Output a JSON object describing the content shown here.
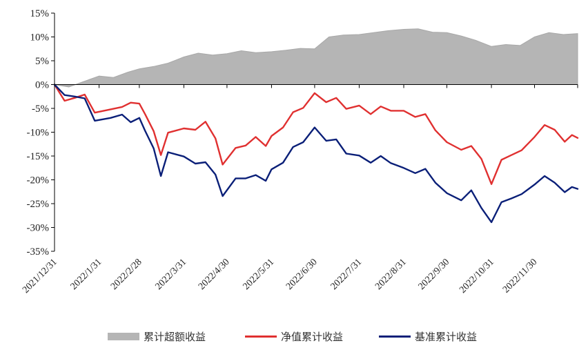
{
  "chart_data": {
    "type": "line",
    "title": "",
    "xlabel": "",
    "ylabel": "",
    "ylim": [
      -35,
      15
    ],
    "y_ticks": [
      "15%",
      "10%",
      "5%",
      "0%",
      "-5%",
      "-10%",
      "-15%",
      "-20%",
      "-25%",
      "-30%",
      "-35%"
    ],
    "y_tick_values": [
      15,
      10,
      5,
      0,
      -5,
      -10,
      -15,
      -20,
      -25,
      -30,
      -35
    ],
    "x_range": [
      "2021/12/31",
      "2022/12/30"
    ],
    "x_ticks": [
      "2021/12/31",
      "2022/1/31",
      "2022/2/28",
      "2022/3/31",
      "2022/4/30",
      "2022/5/31",
      "2022/6/30",
      "2022/7/31",
      "2022/8/31",
      "2022/9/30",
      "2022/10/31",
      "2022/11/30"
    ],
    "grid": false,
    "legend_position": "bottom",
    "series": [
      {
        "name": "累计超额收益",
        "type": "area",
        "color": "#b5b5b5",
        "points": [
          [
            "2021/12/31",
            0
          ],
          [
            "2022/1/10",
            -0.5
          ],
          [
            "2022/1/20",
            0.6
          ],
          [
            "2022/1/31",
            1.8
          ],
          [
            "2022/2/10",
            1.5
          ],
          [
            "2022/2/20",
            2.6
          ],
          [
            "2022/2/28",
            3.3
          ],
          [
            "2022/3/10",
            3.8
          ],
          [
            "2022/3/20",
            4.5
          ],
          [
            "2022/3/31",
            5.8
          ],
          [
            "2022/4/10",
            6.6
          ],
          [
            "2022/4/20",
            6.2
          ],
          [
            "2022/4/30",
            6.5
          ],
          [
            "2022/5/10",
            7.1
          ],
          [
            "2022/5/20",
            6.7
          ],
          [
            "2022/5/31",
            6.9
          ],
          [
            "2022/6/10",
            7.2
          ],
          [
            "2022/6/20",
            7.6
          ],
          [
            "2022/6/30",
            7.5
          ],
          [
            "2022/7/10",
            10.0
          ],
          [
            "2022/7/20",
            10.4
          ],
          [
            "2022/7/31",
            10.5
          ],
          [
            "2022/8/10",
            10.9
          ],
          [
            "2022/8/20",
            11.3
          ],
          [
            "2022/8/31",
            11.6
          ],
          [
            "2022/9/10",
            11.7
          ],
          [
            "2022/9/20",
            11.0
          ],
          [
            "2022/9/30",
            10.9
          ],
          [
            "2022/10/10",
            10.2
          ],
          [
            "2022/10/20",
            9.3
          ],
          [
            "2022/10/31",
            8.0
          ],
          [
            "2022/11/10",
            8.4
          ],
          [
            "2022/11/20",
            8.2
          ],
          [
            "2022/11/30",
            10.0
          ],
          [
            "2022/12/10",
            10.9
          ],
          [
            "2022/12/20",
            10.5
          ],
          [
            "2022/12/30",
            10.7
          ]
        ]
      },
      {
        "name": "净值累计收益",
        "type": "line",
        "color": "#e03030",
        "points": [
          [
            "2021/12/31",
            0
          ],
          [
            "2022/1/7",
            -3.4
          ],
          [
            "2022/1/14",
            -2.8
          ],
          [
            "2022/1/21",
            -2.1
          ],
          [
            "2022/1/28",
            -5.9
          ],
          [
            "2022/2/8",
            -5.2
          ],
          [
            "2022/2/16",
            -4.7
          ],
          [
            "2022/2/22",
            -3.8
          ],
          [
            "2022/2/28",
            -4.0
          ],
          [
            "2022/3/4",
            -6.2
          ],
          [
            "2022/3/10",
            -9.8
          ],
          [
            "2022/3/15",
            -14.8
          ],
          [
            "2022/3/20",
            -10.1
          ],
          [
            "2022/3/31",
            -9.2
          ],
          [
            "2022/4/8",
            -9.5
          ],
          [
            "2022/4/15",
            -7.8
          ],
          [
            "2022/4/22",
            -11.3
          ],
          [
            "2022/4/27",
            -16.8
          ],
          [
            "2022/5/6",
            -13.3
          ],
          [
            "2022/5/13",
            -12.8
          ],
          [
            "2022/5/20",
            -11.0
          ],
          [
            "2022/5/27",
            -12.9
          ],
          [
            "2022/5/31",
            -10.8
          ],
          [
            "2022/6/8",
            -9.0
          ],
          [
            "2022/6/15",
            -5.8
          ],
          [
            "2022/6/22",
            -4.9
          ],
          [
            "2022/6/30",
            -1.8
          ],
          [
            "2022/7/8",
            -3.7
          ],
          [
            "2022/7/15",
            -2.8
          ],
          [
            "2022/7/22",
            -5.1
          ],
          [
            "2022/7/31",
            -4.4
          ],
          [
            "2022/8/8",
            -6.2
          ],
          [
            "2022/8/15",
            -4.6
          ],
          [
            "2022/8/22",
            -5.5
          ],
          [
            "2022/8/31",
            -5.5
          ],
          [
            "2022/9/8",
            -6.8
          ],
          [
            "2022/9/15",
            -6.2
          ],
          [
            "2022/9/22",
            -9.6
          ],
          [
            "2022/9/30",
            -12.1
          ],
          [
            "2022/10/10",
            -13.7
          ],
          [
            "2022/10/17",
            -12.9
          ],
          [
            "2022/10/24",
            -15.6
          ],
          [
            "2022/10/31",
            -20.9
          ],
          [
            "2022/11/7",
            -15.8
          ],
          [
            "2022/11/14",
            -14.8
          ],
          [
            "2022/11/21",
            -13.8
          ],
          [
            "2022/11/30",
            -11.0
          ],
          [
            "2022/12/7",
            -8.5
          ],
          [
            "2022/12/14",
            -9.5
          ],
          [
            "2022/12/21",
            -12.0
          ],
          [
            "2022/12/26",
            -10.6
          ],
          [
            "2022/12/30",
            -11.2
          ]
        ]
      },
      {
        "name": "基准累计收益",
        "type": "line",
        "color": "#0a1f78",
        "points": [
          [
            "2021/12/31",
            0
          ],
          [
            "2022/1/7",
            -2.2
          ],
          [
            "2022/1/14",
            -2.5
          ],
          [
            "2022/1/21",
            -2.9
          ],
          [
            "2022/1/28",
            -7.6
          ],
          [
            "2022/2/8",
            -7.0
          ],
          [
            "2022/2/16",
            -6.3
          ],
          [
            "2022/2/22",
            -7.9
          ],
          [
            "2022/2/28",
            -7.0
          ],
          [
            "2022/3/4",
            -9.7
          ],
          [
            "2022/3/10",
            -13.4
          ],
          [
            "2022/3/15",
            -19.2
          ],
          [
            "2022/3/20",
            -14.2
          ],
          [
            "2022/3/31",
            -15.1
          ],
          [
            "2022/4/8",
            -16.6
          ],
          [
            "2022/4/15",
            -16.3
          ],
          [
            "2022/4/22",
            -18.9
          ],
          [
            "2022/4/27",
            -23.4
          ],
          [
            "2022/5/6",
            -19.7
          ],
          [
            "2022/5/13",
            -19.7
          ],
          [
            "2022/5/20",
            -19.0
          ],
          [
            "2022/5/27",
            -20.2
          ],
          [
            "2022/5/31",
            -17.8
          ],
          [
            "2022/6/8",
            -16.4
          ],
          [
            "2022/6/15",
            -13.1
          ],
          [
            "2022/6/22",
            -12.1
          ],
          [
            "2022/6/30",
            -9.0
          ],
          [
            "2022/7/8",
            -11.8
          ],
          [
            "2022/7/15",
            -11.5
          ],
          [
            "2022/7/22",
            -14.5
          ],
          [
            "2022/7/31",
            -14.9
          ],
          [
            "2022/8/8",
            -16.4
          ],
          [
            "2022/8/15",
            -15.0
          ],
          [
            "2022/8/22",
            -16.5
          ],
          [
            "2022/8/31",
            -17.5
          ],
          [
            "2022/9/8",
            -18.6
          ],
          [
            "2022/9/15",
            -17.7
          ],
          [
            "2022/9/22",
            -20.6
          ],
          [
            "2022/9/30",
            -22.8
          ],
          [
            "2022/10/10",
            -24.3
          ],
          [
            "2022/10/17",
            -22.2
          ],
          [
            "2022/10/24",
            -25.9
          ],
          [
            "2022/10/31",
            -28.9
          ],
          [
            "2022/11/7",
            -24.7
          ],
          [
            "2022/11/14",
            -23.9
          ],
          [
            "2022/11/21",
            -23.0
          ],
          [
            "2022/11/30",
            -21.0
          ],
          [
            "2022/12/7",
            -19.2
          ],
          [
            "2022/12/14",
            -20.6
          ],
          [
            "2022/12/21",
            -22.6
          ],
          [
            "2022/12/26",
            -21.5
          ],
          [
            "2022/12/30",
            -21.9
          ]
        ]
      }
    ]
  }
}
